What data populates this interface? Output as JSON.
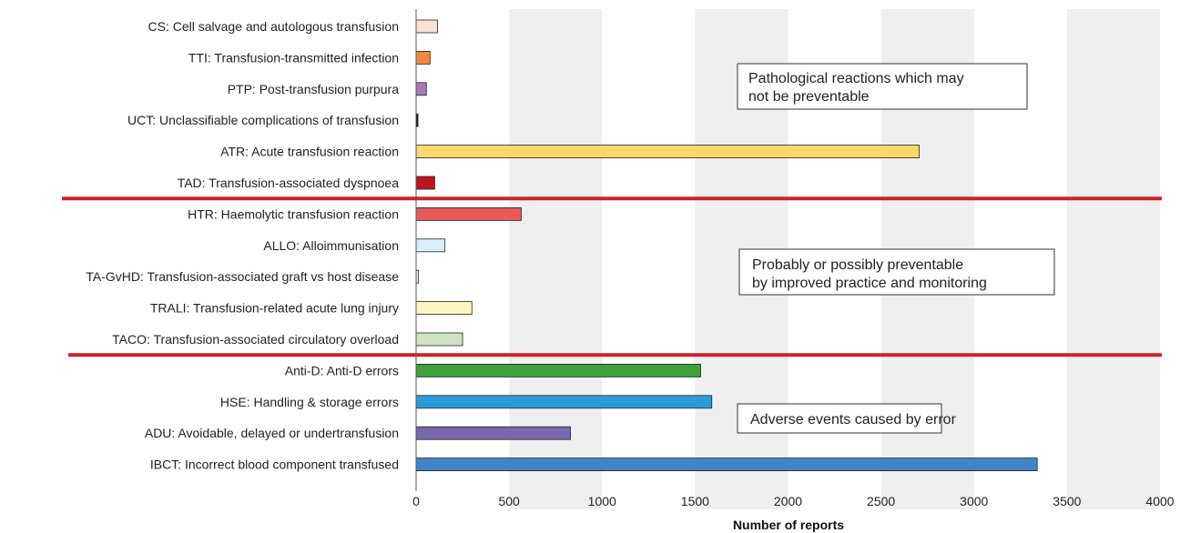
{
  "chart_data": {
    "type": "bar",
    "orientation": "horizontal",
    "xlabel": "Number of reports",
    "xlim": [
      0,
      4000
    ],
    "xticks": [
      0,
      500,
      1000,
      1500,
      2000,
      2500,
      3000,
      3500,
      4000
    ],
    "grid": "alternating vertical bands",
    "categories": [
      "CS: Cell salvage and autologous transfusion",
      "TTI: Transfusion-transmitted infection",
      "PTP: Post-transfusion purpura",
      "UCT: Unclassifiable complications of transfusion",
      "ATR: Acute transfusion reaction",
      "TAD: Transfusion-associated dyspnoea",
      "HTR: Haemolytic transfusion reaction",
      "ALLO: Alloimmunisation",
      "TA-GvHD: Transfusion-associated graft vs host disease",
      "TRALI: Transfusion-related acute lung injury",
      "TACO: Transfusion-associated circulatory overload",
      "Anti-D: Anti-D errors",
      "HSE: Handling & storage errors",
      "ADU: Avoidable, delayed or undertransfusion",
      "IBCT: Incorrect blood component transfused"
    ],
    "values": [
      115,
      75,
      55,
      10,
      2705,
      100,
      565,
      155,
      13,
      300,
      250,
      1530,
      1590,
      830,
      3340
    ],
    "colors": [
      "#fbe0d4",
      "#ef8a3c",
      "#a77bb5",
      "#111111",
      "#fcd86b",
      "#c0141e",
      "#e85a5a",
      "#dbeefb",
      "#eeeeee",
      "#fdf6c0",
      "#cfe2c6",
      "#3fa13a",
      "#2b9cda",
      "#7b68ac",
      "#3f86c8"
    ],
    "groups": [
      {
        "label": "Pathological reactions which may not be preventable",
        "lines": [
          "Pathological reactions which may",
          "not be preventable"
        ]
      },
      {
        "label": "Probably or possibly preventable by improved practice and monitoring",
        "lines": [
          "Probably or possibly preventable",
          "by improved practice and monitoring"
        ]
      },
      {
        "label": "Adverse events caused by error",
        "lines": [
          "Adverse events caused by error"
        ]
      }
    ]
  },
  "colors": {
    "separator": "#cc2229",
    "band": "#efefef"
  }
}
